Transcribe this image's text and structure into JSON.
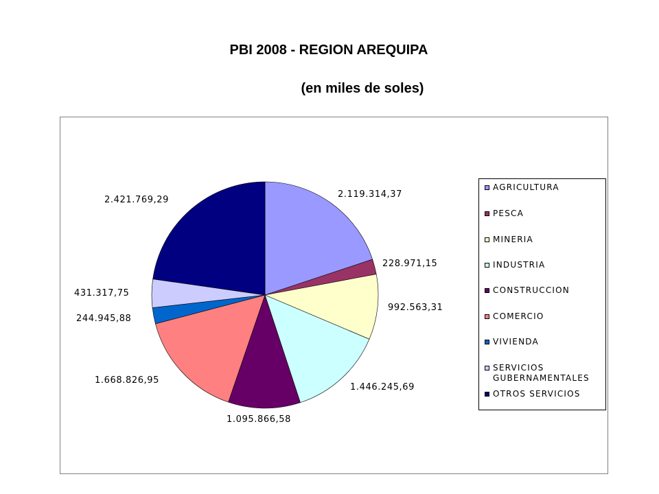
{
  "chart_data": {
    "type": "pie",
    "title": "PBI 2008 -  REGION AREQUIPA",
    "subtitle": "(en miles de soles)",
    "legend_position": "right",
    "slices": [
      {
        "name": "AGRICULTURA",
        "value": 2119314.37,
        "label": "2.119.314,37",
        "color": "#9999FF"
      },
      {
        "name": "PESCA",
        "value": 228971.15,
        "label": "228.971,15",
        "color": "#993366"
      },
      {
        "name": "MINERIA",
        "value": 992563.31,
        "label": "992.563,31",
        "color": "#FFFFCC"
      },
      {
        "name": "INDUSTRIA",
        "value": 1446245.69,
        "label": "1.446.245,69",
        "color": "#CCFFFF"
      },
      {
        "name": "CONSTRUCCION",
        "value": 1095866.58,
        "label": "1.095.866,58",
        "color": "#660066"
      },
      {
        "name": "COMERCIO",
        "value": 1668826.95,
        "label": "1.668.826,95",
        "color": "#FF8080"
      },
      {
        "name": "VIVIENDA",
        "value": 244945.88,
        "label": "244.945,88",
        "color": "#0066CC"
      },
      {
        "name": "SERVICIOS GUBERNAMENTALES",
        "value": 431317.75,
        "label": "431.317,75",
        "color": "#CCCCFF"
      },
      {
        "name": "OTROS SERVICIOS",
        "value": 2421769.29,
        "label": "2.421.769,29",
        "color": "#000080"
      }
    ]
  }
}
